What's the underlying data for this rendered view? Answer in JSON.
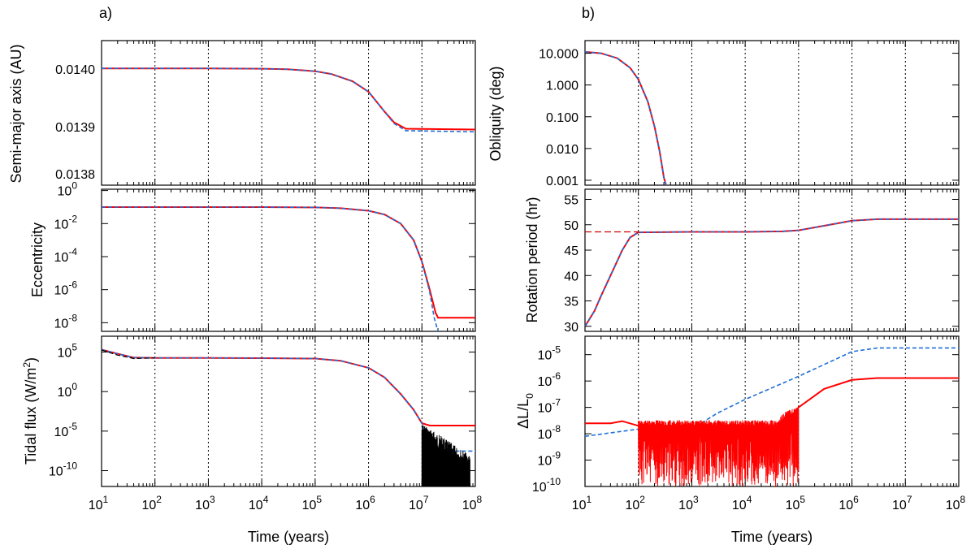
{
  "chart_data": [
    {
      "id": "semimajor",
      "type": "line",
      "panel_label": "a)",
      "ylabel": "Semi-major axis (AU)",
      "x_scale": "log",
      "xlim": [
        10,
        100000000
      ],
      "y_scale": "linear",
      "ylim": [
        0.01379,
        0.01405
      ],
      "y_ticks": [
        "0.0138",
        "0.0139",
        "0.0140"
      ],
      "y_tick_values": [
        0.0138,
        0.0139,
        0.014
      ],
      "series": [
        {
          "color": "#ff0000",
          "style": "solid",
          "x": [
            10,
            100,
            1000,
            10000,
            30000,
            100000,
            200000,
            500000,
            1000000,
            2000000,
            3000000,
            5000000,
            100000000
          ],
          "y": [
            0.014,
            0.014,
            0.014,
            0.0139995,
            0.0139985,
            0.013995,
            0.01399,
            0.013977,
            0.013958,
            0.013922,
            0.013903,
            0.0138915,
            0.01389
          ]
        },
        {
          "color": "#1f6fd6",
          "style": "dashed",
          "x": [
            10,
            100,
            1000,
            10000,
            30000,
            100000,
            200000,
            500000,
            1000000,
            2000000,
            3000000,
            5000000,
            100000000
          ],
          "y": [
            0.014,
            0.014,
            0.014,
            0.0139995,
            0.0139985,
            0.013995,
            0.01399,
            0.013977,
            0.013958,
            0.013922,
            0.013901,
            0.013888,
            0.013886
          ]
        }
      ]
    },
    {
      "id": "eccentricity",
      "type": "line",
      "ylabel": "Eccentricity",
      "x_scale": "log",
      "xlim": [
        10,
        100000000
      ],
      "y_scale": "log",
      "ylim": [
        3e-09,
        1.2
      ],
      "y_ticks": [
        "10^0",
        "10^-2",
        "10^-4",
        "10^-6",
        "10^-8"
      ],
      "y_tick_values": [
        1,
        0.01,
        0.0001,
        1e-06,
        1e-08
      ],
      "series": [
        {
          "color": "#ff0000",
          "style": "solid",
          "x": [
            10,
            100,
            1000,
            10000,
            100000,
            300000,
            1000000,
            2000000,
            4000000,
            7000000,
            10000000,
            14000000,
            18000000,
            20000000,
            100000000
          ],
          "y": [
            0.1,
            0.1,
            0.1,
            0.099,
            0.095,
            0.085,
            0.06,
            0.035,
            0.01,
            0.001,
            5e-05,
            1e-06,
            4e-08,
            2e-08,
            2e-08
          ]
        },
        {
          "color": "#1f6fd6",
          "style": "dashed",
          "x": [
            10,
            100,
            1000,
            10000,
            100000,
            300000,
            1000000,
            2000000,
            4000000,
            7000000,
            10000000,
            14000000,
            17000000,
            20000000
          ],
          "y": [
            0.1,
            0.1,
            0.1,
            0.099,
            0.095,
            0.085,
            0.06,
            0.035,
            0.01,
            0.001,
            5e-05,
            7e-07,
            2e-08,
            3e-09
          ]
        }
      ]
    },
    {
      "id": "tidalflux",
      "type": "line",
      "ylabel": "Tidal flux (W/m^2)",
      "xlabel": "Time (years)",
      "x_scale": "log",
      "xlim": [
        10,
        100000000
      ],
      "y_scale": "log",
      "ylim": [
        1e-12,
        10000000.0
      ],
      "y_ticks": [
        "10^5",
        "10^0",
        "10^-5",
        "10^-10"
      ],
      "y_tick_values": [
        100000,
        1,
        1e-05,
        1e-10
      ],
      "x_ticks": [
        "10^1",
        "10^2",
        "10^3",
        "10^4",
        "10^5",
        "10^6",
        "10^7",
        "10^8"
      ],
      "series": [
        {
          "color": "#ff0000",
          "style": "solid",
          "x": [
            10,
            20,
            40,
            100,
            1000,
            10000,
            100000,
            300000,
            1000000,
            2000000,
            4000000,
            7000000,
            10000000,
            14000000,
            100000000
          ],
          "y": [
            200000,
            60000,
            20000,
            18000,
            18000,
            17000,
            15000,
            8000,
            1000,
            60,
            0.5,
            0.005,
            0.0001,
            5e-05,
            5e-05
          ]
        },
        {
          "color": "#1f6fd6",
          "style": "dashed",
          "x": [
            10,
            20,
            40,
            100,
            1000,
            10000,
            100000,
            300000,
            1000000,
            2000000,
            4000000,
            7000000,
            10000000,
            14000000,
            20000000,
            100000000
          ],
          "y": [
            200000,
            60000,
            20000,
            18000,
            18000,
            17000,
            15000,
            8000,
            1000,
            60,
            0.5,
            0.005,
            0.0001,
            1e-06,
            3e-08,
            3e-08
          ]
        },
        {
          "color": "#000000",
          "style": "dashed",
          "x": [
            10,
            20,
            40,
            100
          ],
          "y": [
            180000,
            40000,
            15000,
            18000
          ]
        }
      ]
    },
    {
      "id": "obliquity",
      "type": "line",
      "panel_label": "b)",
      "ylabel": "Obliquity (deg)",
      "x_scale": "log",
      "xlim": [
        10,
        100000000
      ],
      "y_scale": "log",
      "ylim": [
        0.0007,
        25
      ],
      "y_ticks": [
        "10.000",
        "1.000",
        "0.100",
        "0.010",
        "0.001"
      ],
      "y_tick_values": [
        10,
        1,
        0.1,
        0.01,
        0.001
      ],
      "series": [
        {
          "color": "#ff0000",
          "style": "solid",
          "x": [
            10,
            20,
            40,
            70,
            100,
            150,
            200,
            250,
            300,
            330
          ],
          "y": [
            11,
            10,
            7,
            3.5,
            1.5,
            0.3,
            0.05,
            0.008,
            0.0012,
            0.0007
          ]
        },
        {
          "color": "#1f6fd6",
          "style": "dashed",
          "x": [
            10,
            20,
            40,
            70,
            100,
            150,
            200,
            250,
            300,
            330
          ],
          "y": [
            11,
            10,
            7,
            3.5,
            1.5,
            0.3,
            0.05,
            0.008,
            0.0012,
            0.0007
          ]
        }
      ]
    },
    {
      "id": "rotation",
      "type": "line",
      "ylabel": "Rotation period (hr)",
      "x_scale": "log",
      "xlim": [
        10,
        100000000
      ],
      "y_scale": "linear",
      "ylim": [
        29,
        57
      ],
      "y_ticks": [
        "30",
        "35",
        "40",
        "45",
        "50",
        "55"
      ],
      "y_tick_values": [
        30,
        35,
        40,
        45,
        50,
        55
      ],
      "series": [
        {
          "color": "#ff0000",
          "style": "solid",
          "x": [
            10,
            15,
            20,
            30,
            50,
            70,
            100,
            1000,
            10000,
            50000,
            100000,
            300000,
            1000000,
            3000000,
            100000000
          ],
          "y": [
            30,
            33,
            36,
            40,
            45,
            47.5,
            48.5,
            48.6,
            48.6,
            48.7,
            48.9,
            49.8,
            50.8,
            51.1,
            51.1
          ]
        },
        {
          "color": "#1f6fd6",
          "style": "dashed",
          "x": [
            10,
            15,
            20,
            30,
            50,
            70,
            100,
            1000,
            10000,
            50000,
            100000,
            300000,
            1000000,
            3000000,
            100000000
          ],
          "y": [
            30,
            33,
            36,
            40,
            45,
            47.5,
            48.5,
            48.6,
            48.6,
            48.7,
            48.9,
            49.8,
            50.8,
            51.1,
            51.1
          ]
        },
        {
          "color": "#cc0000",
          "style": "dashed",
          "x": [
            10,
            100
          ],
          "y": [
            48.6,
            48.6
          ]
        }
      ]
    },
    {
      "id": "luminosity",
      "type": "line",
      "ylabel": "ΔL/L0",
      "xlabel": "Time (years)",
      "x_scale": "log",
      "xlim": [
        10,
        100000000
      ],
      "y_scale": "log",
      "ylim": [
        1e-10,
        5e-05
      ],
      "y_ticks": [
        "10^-5",
        "10^-6",
        "10^-7",
        "10^-8",
        "10^-9",
        "10^-10"
      ],
      "y_tick_values": [
        1e-05,
        1e-06,
        1e-07,
        1e-08,
        1e-09,
        1e-10
      ],
      "x_ticks": [
        "10^1",
        "10^2",
        "10^3",
        "10^4",
        "10^5",
        "10^6",
        "10^7",
        "10^8"
      ],
      "series": [
        {
          "color": "#1f6fd6",
          "style": "dashed",
          "x": [
            10,
            100,
            300,
            700,
            1000,
            3000,
            10000,
            100000,
            1000000,
            3000000,
            100000000
          ],
          "y": [
            8e-09,
            1.5e-08,
            2e-08,
            1e-09,
            1.5e-08,
            6e-08,
            2e-07,
            1.5e-06,
            1.3e-05,
            1.8e-05,
            1.8e-05
          ]
        },
        {
          "color": "#ff0000",
          "style": "solid",
          "x": [
            10,
            30,
            50,
            100,
            1000,
            10000,
            40000,
            100000,
            300000,
            1000000,
            3000000,
            100000000
          ],
          "y": [
            2.5e-08,
            2.5e-08,
            3e-08,
            2e-08,
            2e-08,
            2e-08,
            1e-08,
            1e-07,
            5e-07,
            1.1e-06,
            1.3e-06,
            1.3e-06
          ]
        }
      ]
    }
  ],
  "panel_labels": {
    "a": "a)",
    "b": "b)"
  },
  "axis_labels": {
    "semimajor": "Semi-major axis (AU)",
    "eccentricity": "Eccentricity",
    "tidal_main": "Tidal flux (W/m",
    "tidal_sup": "2",
    "tidal_tail": ")",
    "obliquity": "Obliquity (deg)",
    "rotation": "Rotation period (hr)",
    "dl_main": "ΔL/L",
    "dl_sub": "0",
    "time_a": "Time (years)",
    "time_b": "Time (years)"
  },
  "x_tick_exponents": [
    "1",
    "2",
    "3",
    "4",
    "5",
    "6",
    "7",
    "8"
  ],
  "x_tick_base": "10",
  "ticks": {
    "semimajor": [
      "0.0140",
      "0.0139",
      "0.0138"
    ],
    "ecc_exp": [
      "0",
      "-2",
      "-4",
      "-6",
      "-8"
    ],
    "tidal_exp": [
      "5",
      "0",
      "-5",
      "-10"
    ],
    "obliq": [
      "10.000",
      "1.000",
      "0.100",
      "0.010",
      "0.001"
    ],
    "rot": [
      "55",
      "50",
      "45",
      "40",
      "35",
      "30"
    ],
    "dl_exp": [
      "-5",
      "-6",
      "-7",
      "-8",
      "-9",
      "-10"
    ]
  }
}
